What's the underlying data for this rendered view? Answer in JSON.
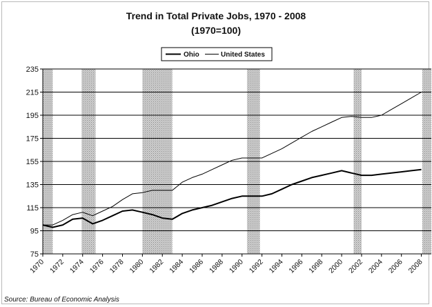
{
  "chart_data": {
    "type": "line",
    "title": "Trend in Total Private Jobs, 1970 - 2008",
    "subtitle": "(1970=100)",
    "source": "Source: Bureau of Economic Analysis",
    "ylim": [
      75,
      235
    ],
    "yticks": [
      75,
      95,
      115,
      135,
      155,
      175,
      195,
      215,
      235
    ],
    "xlim": [
      1970,
      2009
    ],
    "xticks": [
      1970,
      1972,
      1974,
      1976,
      1978,
      1980,
      1982,
      1984,
      1986,
      1988,
      1990,
      1992,
      1994,
      1996,
      1998,
      2000,
      2002,
      2004,
      2006,
      2008
    ],
    "grid": "horizontal",
    "legend_position": "top-center",
    "shaded_periods": [
      [
        1970,
        1971
      ],
      [
        1973.9,
        1975.3
      ],
      [
        1980,
        1983
      ],
      [
        1990.5,
        1991.8
      ],
      [
        2001.2,
        2002
      ],
      [
        2008.1,
        2009
      ]
    ],
    "x": [
      1970,
      1971,
      1972,
      1973,
      1974,
      1975,
      1976,
      1977,
      1978,
      1979,
      1980,
      1981,
      1982,
      1983,
      1984,
      1985,
      1986,
      1987,
      1988,
      1989,
      1990,
      1991,
      1992,
      1993,
      1994,
      1995,
      1996,
      1997,
      1998,
      1999,
      2000,
      2001,
      2002,
      2003,
      2004,
      2005,
      2006,
      2007,
      2008
    ],
    "series": [
      {
        "name": "Ohio",
        "color": "#000000",
        "values": [
          100,
          98,
          100,
          105,
          106,
          101,
          104,
          108,
          112,
          113,
          111,
          109,
          106,
          105,
          110,
          113,
          115,
          117,
          120,
          123,
          125,
          125,
          125,
          127,
          131,
          135,
          138,
          141,
          143,
          145,
          147,
          145,
          143,
          143,
          144,
          145,
          146,
          147,
          148
        ]
      },
      {
        "name": "United States",
        "color": "#000000",
        "values": [
          100,
          100,
          104,
          109,
          111,
          108,
          112,
          116,
          122,
          127,
          128,
          130,
          130,
          130,
          137,
          141,
          144,
          148,
          152,
          156,
          158,
          158,
          158,
          162,
          166,
          171,
          176,
          181,
          185,
          189,
          193,
          194,
          193,
          193,
          195,
          200,
          205,
          210,
          215
        ]
      }
    ]
  }
}
